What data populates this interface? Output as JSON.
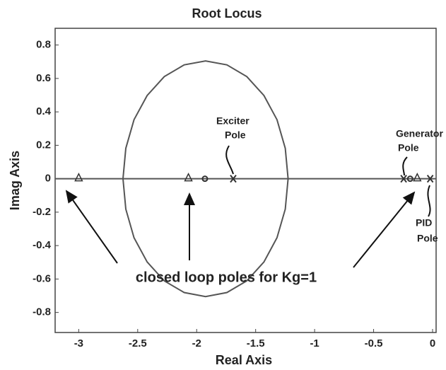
{
  "chart_data": {
    "type": "rootlocus",
    "title": "Root Locus",
    "x_label": "Real Axis",
    "y_label": "Imag Axis",
    "xlim": [
      -3.2,
      0.03
    ],
    "ylim": [
      -0.92,
      0.9
    ],
    "xticks": [
      -3,
      -2.5,
      -2,
      -1.5,
      -1,
      -0.5,
      0
    ],
    "yticks": [
      -0.8,
      -0.6,
      -0.4,
      -0.2,
      0,
      0.2,
      0.4,
      0.6,
      0.8
    ],
    "locus": [
      {
        "color": "#555555",
        "x": [
          -1.225,
          -1.249,
          -1.319,
          -1.43,
          -1.575,
          -1.744,
          -1.925,
          -2.106,
          -2.275,
          -2.42,
          -2.531,
          -2.601,
          -2.625,
          -2.601,
          -2.531,
          -2.42,
          -2.275,
          -2.106,
          -1.925,
          -1.744,
          -1.575,
          -1.43,
          -1.319,
          -1.249,
          -1.225
        ],
        "y": [
          0,
          0.182,
          0.353,
          0.498,
          0.611,
          0.681,
          0.705,
          0.681,
          0.611,
          0.498,
          0.353,
          0.182,
          0,
          -0.182,
          -0.353,
          -0.498,
          -0.611,
          -0.681,
          -0.705,
          -0.681,
          -0.611,
          -0.498,
          -0.353,
          -0.182,
          0
        ]
      },
      {
        "color": "#555555",
        "x": [
          -3.2,
          0.03
        ],
        "y": [
          0,
          0
        ]
      }
    ],
    "markers": [
      {
        "marker": "x",
        "color": "#333333",
        "x": [
          -1.69,
          -0.245,
          -0.02
        ],
        "y": [
          0,
          0,
          0
        ]
      },
      {
        "marker": "o",
        "color": "#333333",
        "x": [
          -1.93,
          -0.19
        ],
        "y": [
          0,
          0
        ]
      },
      {
        "marker": "triangle",
        "color": "#333333",
        "x": [
          -3.0,
          -2.07,
          -0.13
        ],
        "y": [
          0,
          0,
          0
        ]
      }
    ],
    "annotations": [
      {
        "lines": [
          "Exciter",
          "Pole"
        ]
      },
      {
        "lines": [
          "Generator",
          "Pole"
        ]
      },
      {
        "lines": [
          "PID",
          "Pole"
        ]
      },
      {
        "lines": [
          "closed loop poles for Kg=1"
        ]
      }
    ]
  }
}
